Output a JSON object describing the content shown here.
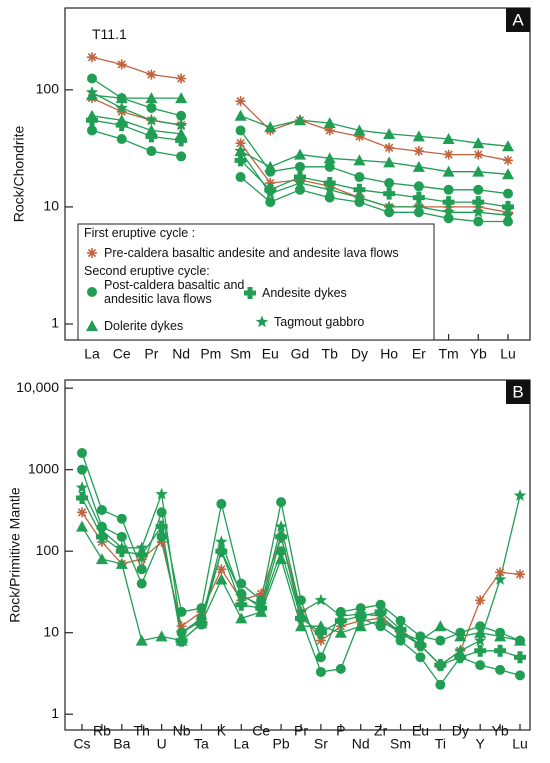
{
  "chart_data": [
    {
      "type": "line",
      "panel_label": "A",
      "annotation": "T11.1",
      "y_label": "Rock/Chondrite",
      "log_scale": true,
      "categories": [
        "La",
        "Ce",
        "Pr",
        "Nd",
        "Pm",
        "Sm",
        "Eu",
        "Gd",
        "Tb",
        "Dy",
        "Ho",
        "Er",
        "Tm",
        "Yb",
        "Lu"
      ],
      "ylim": [
        0.73,
        500
      ],
      "yticks": [
        1,
        10,
        100
      ],
      "legend_headings": [
        "First eruptive cycle :",
        "Second eruptive cycle:"
      ],
      "series": [
        {
          "name": "Pre-caldera basaltic andesite and andesite lava flows",
          "color": "#c0643f",
          "marker": "asterisk",
          "values": [
            190,
            165,
            135,
            125,
            null,
            80,
            45,
            55,
            45,
            40,
            32,
            30,
            28,
            28,
            25
          ]
        },
        {
          "name": "Pre-caldera basaltic andesite and andesite lava flows",
          "color": "#c0643f",
          "marker": "asterisk",
          "values": [
            85,
            65,
            55,
            50,
            null,
            35,
            16,
            17,
            15,
            12,
            10,
            10,
            10,
            10,
            9
          ]
        },
        {
          "name": "Post-caldera basaltic and andesitic lava flows",
          "color": "#1f9e54",
          "marker": "circle",
          "values": [
            125,
            85,
            70,
            60,
            null,
            45,
            20,
            22,
            22,
            18,
            16,
            15,
            14,
            14,
            13
          ]
        },
        {
          "name": "Post-caldera basaltic and andesitic lava flows",
          "color": "#1f9e54",
          "marker": "circle",
          "values": [
            45,
            38,
            30,
            27,
            null,
            18,
            11,
            14,
            12,
            11,
            9,
            9,
            8,
            7.5,
            7.5
          ]
        },
        {
          "name": "Dolerite dykes",
          "color": "#1f9e54",
          "marker": "triangle",
          "values": [
            90,
            85,
            85,
            85,
            null,
            60,
            48,
            55,
            52,
            45,
            42,
            40,
            38,
            35,
            33
          ]
        },
        {
          "name": "Dolerite dykes",
          "color": "#1f9e54",
          "marker": "triangle",
          "values": [
            60,
            55,
            45,
            42,
            null,
            30,
            22,
            28,
            26,
            25,
            24,
            22,
            20,
            20,
            19
          ]
        },
        {
          "name": "Andesite dykes",
          "color": "#1f9e54",
          "marker": "plus",
          "values": [
            55,
            50,
            40,
            37,
            null,
            25,
            14,
            18,
            16,
            14,
            13,
            12,
            11,
            11,
            10
          ]
        },
        {
          "name": "Tagmout gabbro",
          "color": "#1f9e54",
          "marker": "star",
          "values": [
            95,
            70,
            55,
            50,
            null,
            30,
            13,
            16,
            14,
            12,
            10,
            10,
            9,
            9,
            8.5
          ]
        }
      ]
    },
    {
      "type": "line",
      "panel_label": "B",
      "y_label": "Rock/Primitive Mantle",
      "log_scale": true,
      "categories": [
        "Cs",
        "Rb",
        "Ba",
        "Th",
        "U",
        "Nb",
        "Ta",
        "K",
        "La",
        "Ce",
        "Pb",
        "Pr",
        "Sr",
        "P",
        "Nd",
        "Zr",
        "Sm",
        "Eu",
        "Ti",
        "Dy",
        "Y",
        "Yb",
        "Lu"
      ],
      "ylim": [
        0.64,
        12600
      ],
      "yticks": [
        1,
        10,
        100,
        1000,
        {
          "value": 10000,
          "label": "10,000"
        }
      ],
      "series": [
        {
          "name": "Pre-caldera basaltic andesite and andesite lava flows",
          "color": "#c0643f",
          "marker": "asterisk",
          "values": [
            300,
            130,
            70,
            80,
            130,
            12,
            18,
            60,
            25,
            30,
            150,
            18,
            8,
            12,
            14,
            15,
            10,
            7,
            4,
            6,
            25,
            55,
            52
          ]
        },
        {
          "name": "Post-caldera basaltic and andesitic lava flows",
          "color": "#1f9e54",
          "marker": "circle",
          "values": [
            1600,
            320,
            250,
            60,
            300,
            18,
            20,
            380,
            40,
            25,
            400,
            25,
            5,
            18,
            20,
            22,
            14,
            9,
            8,
            10,
            12,
            10,
            8
          ]
        },
        {
          "name": "Post-caldera basaltic and andesitic lava flows",
          "color": "#1f9e54",
          "marker": "circle",
          "values": [
            1000,
            200,
            150,
            40,
            150,
            10,
            15,
            100,
            30,
            20,
            100,
            15,
            3.3,
            3.6,
            15,
            12,
            8,
            5,
            2.3,
            5,
            4,
            3.5,
            3
          ]
        },
        {
          "name": "Dolerite dykes",
          "color": "#1f9e54",
          "marker": "triangle",
          "values": [
            200,
            80,
            70,
            8,
            9,
            8,
            13,
            45,
            15,
            18,
            80,
            12,
            12,
            10,
            12,
            14,
            10,
            8,
            12,
            9,
            10,
            9,
            8
          ]
        },
        {
          "name": "Andesite dykes",
          "color": "#1f9e54",
          "marker": "plus",
          "values": [
            450,
            150,
            100,
            90,
            200,
            8,
            13,
            100,
            22,
            20,
            150,
            15,
            10,
            14,
            16,
            18,
            11,
            7,
            4,
            5,
            6,
            6,
            5
          ]
        },
        {
          "name": "Tagmout gabbro",
          "color": "#1f9e54",
          "marker": "star",
          "values": [
            600,
            180,
            110,
            110,
            500,
            10,
            14,
            130,
            28,
            22,
            200,
            18,
            25,
            16,
            17,
            16,
            10,
            7,
            4,
            6,
            8,
            45,
            480
          ]
        }
      ]
    }
  ]
}
